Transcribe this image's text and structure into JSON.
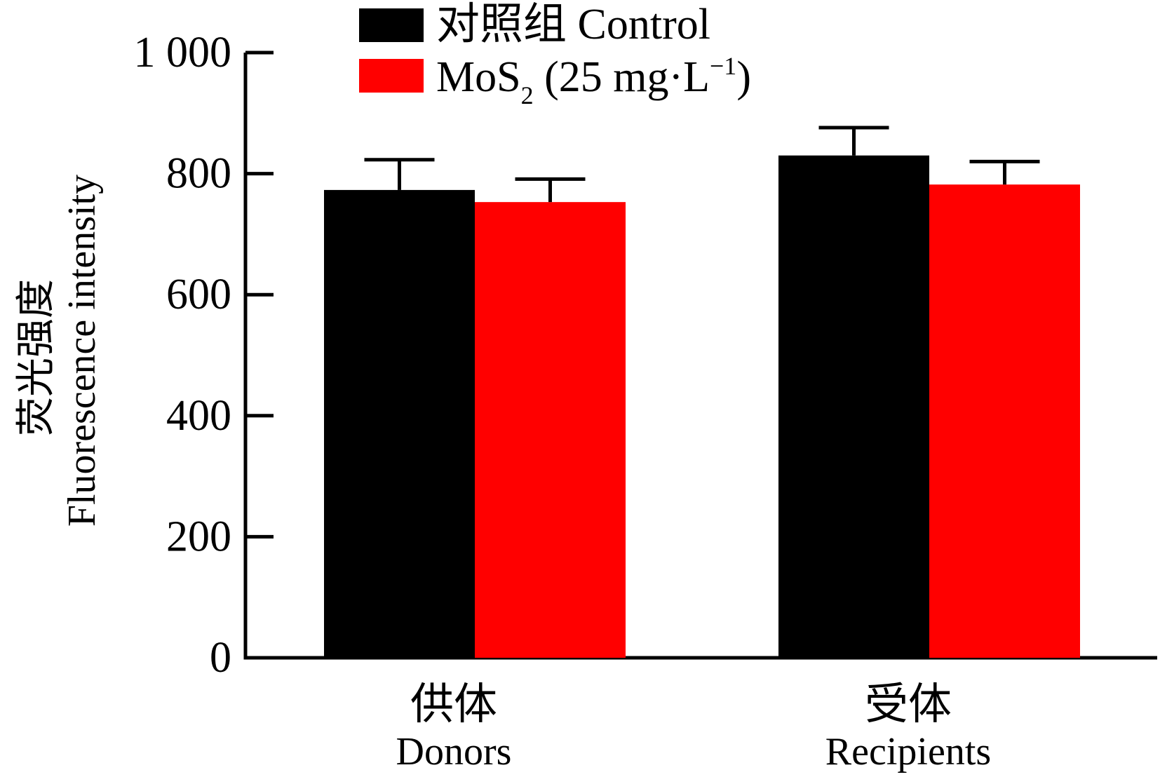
{
  "chart_data": {
    "type": "bar",
    "categories": [
      {
        "zh": "供体",
        "en": "Donors"
      },
      {
        "zh": "受体",
        "en": "Recipients"
      }
    ],
    "series": [
      {
        "name": "对照组 Control",
        "color": "#000000",
        "values": [
          773,
          830
        ],
        "errors": [
          50,
          46
        ]
      },
      {
        "name": "MoS2 (25 mg·L−1)",
        "legend_parts": {
          "main": "MoS",
          "sub": "2",
          "rest": " (25 mg·L",
          "sup": "−1",
          "end": ")"
        },
        "color": "#ff0000",
        "values": [
          753,
          782
        ],
        "errors": [
          38,
          38
        ]
      }
    ],
    "ylabel_zh": "荧光强度",
    "ylabel_en": "Fluorescence intensity",
    "ylim": [
      0,
      1000
    ],
    "yticks": [
      0,
      200,
      400,
      600,
      800,
      1000
    ],
    "ytick_labels": [
      "0",
      "200",
      "400",
      "600",
      "800",
      "1 000"
    ],
    "grid": false,
    "legend_position": "top"
  }
}
